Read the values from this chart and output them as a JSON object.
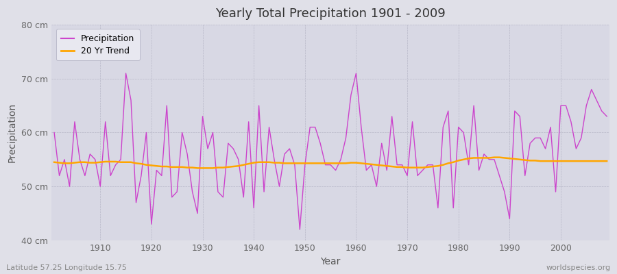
{
  "title": "Yearly Total Precipitation 1901 - 2009",
  "xlabel": "Year",
  "ylabel": "Precipitation",
  "subtitle": "Latitude 57.25 Longitude 15.75",
  "watermark": "worldspecies.org",
  "ylim": [
    40,
    80
  ],
  "yticks": [
    40,
    50,
    60,
    70,
    80
  ],
  "ytick_labels": [
    "40 cm",
    "50 cm",
    "60 cm",
    "70 cm",
    "80 cm"
  ],
  "precip_color": "#CC44CC",
  "trend_color": "#FFA500",
  "fig_bg_color": "#E0E0E8",
  "plot_bg_color": "#D8D8E4",
  "legend_bg_color": "#E8E8F0",
  "years": [
    1901,
    1902,
    1903,
    1904,
    1905,
    1906,
    1907,
    1908,
    1909,
    1910,
    1911,
    1912,
    1913,
    1914,
    1915,
    1916,
    1917,
    1918,
    1919,
    1920,
    1921,
    1922,
    1923,
    1924,
    1925,
    1926,
    1927,
    1928,
    1929,
    1930,
    1931,
    1932,
    1933,
    1934,
    1935,
    1936,
    1937,
    1938,
    1939,
    1940,
    1941,
    1942,
    1943,
    1944,
    1945,
    1946,
    1947,
    1948,
    1949,
    1950,
    1951,
    1952,
    1953,
    1954,
    1955,
    1956,
    1957,
    1958,
    1959,
    1960,
    1961,
    1962,
    1963,
    1964,
    1965,
    1966,
    1967,
    1968,
    1969,
    1970,
    1971,
    1972,
    1973,
    1974,
    1975,
    1976,
    1977,
    1978,
    1979,
    1980,
    1981,
    1982,
    1983,
    1984,
    1985,
    1986,
    1987,
    1988,
    1989,
    1990,
    1991,
    1992,
    1993,
    1994,
    1995,
    1996,
    1997,
    1998,
    1999,
    2000,
    2001,
    2002,
    2003,
    2004,
    2005,
    2006,
    2007,
    2008,
    2009
  ],
  "precip": [
    60,
    52,
    55,
    50,
    62,
    55,
    52,
    56,
    55,
    50,
    62,
    52,
    54,
    55,
    71,
    66,
    47,
    52,
    60,
    43,
    53,
    52,
    65,
    48,
    49,
    60,
    56,
    49,
    45,
    63,
    57,
    60,
    49,
    48,
    58,
    57,
    55,
    48,
    62,
    46,
    65,
    49,
    61,
    55,
    50,
    56,
    57,
    54,
    42,
    54,
    61,
    61,
    58,
    54,
    54,
    53,
    55,
    59,
    67,
    71,
    61,
    53,
    54,
    50,
    58,
    53,
    63,
    54,
    54,
    52,
    62,
    52,
    53,
    54,
    54,
    46,
    61,
    64,
    46,
    61,
    60,
    54,
    65,
    53,
    56,
    55,
    55,
    52,
    49,
    44,
    64,
    63,
    52,
    58,
    59,
    59,
    57,
    61,
    49,
    65,
    65,
    62,
    57,
    59,
    65,
    68,
    66,
    64,
    63
  ],
  "trend": [
    54.5,
    54.4,
    54.3,
    54.3,
    54.4,
    54.5,
    54.5,
    54.4,
    54.4,
    54.5,
    54.6,
    54.6,
    54.6,
    54.5,
    54.5,
    54.5,
    54.3,
    54.2,
    54.0,
    53.9,
    53.8,
    53.7,
    53.7,
    53.6,
    53.6,
    53.6,
    53.5,
    53.5,
    53.4,
    53.4,
    53.4,
    53.4,
    53.5,
    53.5,
    53.6,
    53.7,
    53.8,
    54.0,
    54.2,
    54.4,
    54.5,
    54.5,
    54.5,
    54.4,
    54.4,
    54.3,
    54.3,
    54.3,
    54.3,
    54.3,
    54.3,
    54.3,
    54.3,
    54.3,
    54.3,
    54.3,
    54.3,
    54.3,
    54.4,
    54.4,
    54.3,
    54.2,
    54.1,
    54.0,
    53.9,
    53.8,
    53.7,
    53.6,
    53.6,
    53.5,
    53.5,
    53.5,
    53.5,
    53.6,
    53.7,
    53.8,
    54.0,
    54.3,
    54.5,
    54.8,
    55.0,
    55.2,
    55.3,
    55.3,
    55.3,
    55.3,
    55.4,
    55.4,
    55.3,
    55.2,
    55.1,
    55.0,
    54.9,
    54.8,
    54.8,
    54.7,
    54.7,
    54.7,
    54.7,
    54.7,
    54.7,
    54.7,
    54.7,
    54.7,
    54.7,
    54.7,
    54.7,
    54.7,
    54.7
  ]
}
